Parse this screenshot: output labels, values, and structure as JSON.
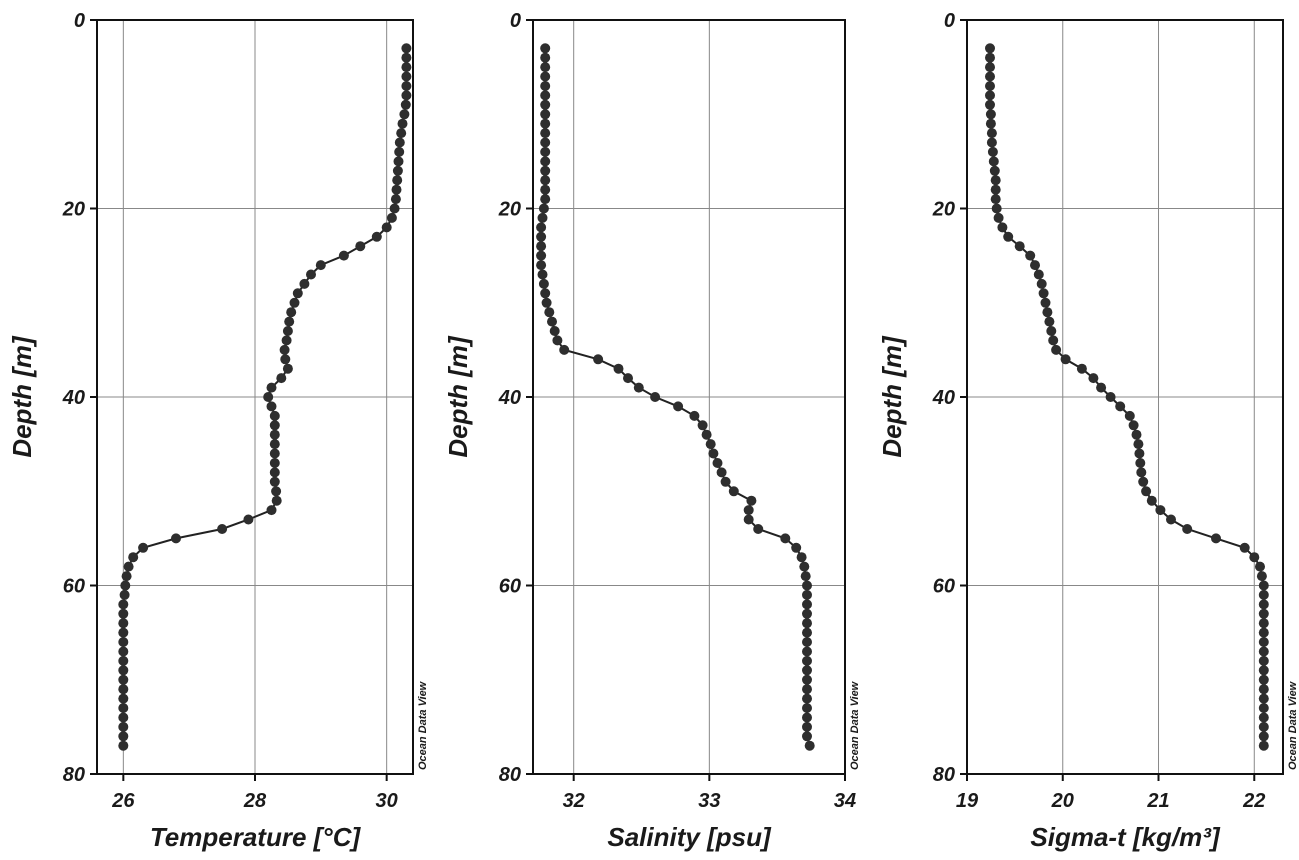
{
  "chart_data": [
    {
      "type": "line",
      "xlabel": "Temperature [°C]",
      "ylabel": "Depth [m]",
      "watermark": "Ocean Data View",
      "xlim": [
        25.6,
        30.4
      ],
      "ylim": [
        0,
        80
      ],
      "y_inverted": true,
      "x_ticks": [
        26,
        28,
        30
      ],
      "x_tick_labels": [
        "26",
        "28",
        "30"
      ],
      "y_ticks": [
        0,
        20,
        40,
        60,
        80
      ],
      "y_tick_labels": [
        "0",
        "20",
        "40",
        "60",
        "80"
      ],
      "grid": true,
      "series": [
        {
          "x": [
            30.3,
            30.3,
            30.3,
            30.3,
            30.3,
            30.3,
            30.29,
            30.27,
            30.24,
            30.22,
            30.2,
            30.19,
            30.18,
            30.17,
            30.16,
            30.15,
            30.14,
            30.12,
            30.08,
            30.0,
            29.85,
            29.6,
            29.35,
            29.0,
            28.85,
            28.75,
            28.65,
            28.6,
            28.55,
            28.52,
            28.5,
            28.48,
            28.45,
            28.46,
            28.5,
            28.4,
            28.25,
            28.2,
            28.25,
            28.3,
            28.3,
            28.3,
            28.3,
            28.3,
            28.3,
            28.3,
            28.3,
            28.32,
            28.33,
            28.25,
            27.9,
            27.5,
            26.8,
            26.3,
            26.15,
            26.08,
            26.05,
            26.03,
            26.02,
            26.0,
            26.0,
            26.0,
            26.0,
            26.0,
            26.0,
            26.0,
            26.0,
            26.0,
            26.0,
            26.0,
            26.0,
            26.0,
            26.0,
            26.0,
            26.0
          ],
          "y": [
            3,
            4,
            5,
            6,
            7,
            8,
            9,
            10,
            11,
            12,
            13,
            14,
            15,
            16,
            17,
            18,
            19,
            20,
            21,
            22,
            23,
            24,
            25,
            26,
            27,
            28,
            29,
            30,
            31,
            32,
            33,
            34,
            35,
            36,
            37,
            38,
            39,
            40,
            41,
            42,
            43,
            44,
            45,
            46,
            47,
            48,
            49,
            50,
            51,
            52,
            53,
            54,
            55,
            56,
            57,
            58,
            59,
            60,
            61,
            62,
            63,
            64,
            65,
            66,
            67,
            68,
            69,
            70,
            71,
            72,
            73,
            74,
            75,
            76,
            77
          ]
        }
      ]
    },
    {
      "type": "line",
      "xlabel": "Salinity [psu]",
      "ylabel": "Depth [m]",
      "watermark": "Ocean Data View",
      "xlim": [
        31.7,
        34.0
      ],
      "ylim": [
        0,
        80
      ],
      "y_inverted": true,
      "x_ticks": [
        32,
        33,
        34
      ],
      "x_tick_labels": [
        "32",
        "33",
        "34"
      ],
      "y_ticks": [
        0,
        20,
        40,
        60,
        80
      ],
      "y_tick_labels": [
        "0",
        "20",
        "40",
        "60",
        "80"
      ],
      "grid": true,
      "series": [
        {
          "x": [
            31.79,
            31.79,
            31.79,
            31.79,
            31.79,
            31.79,
            31.79,
            31.79,
            31.79,
            31.79,
            31.79,
            31.79,
            31.79,
            31.79,
            31.79,
            31.79,
            31.79,
            31.78,
            31.77,
            31.76,
            31.76,
            31.76,
            31.76,
            31.76,
            31.77,
            31.78,
            31.79,
            31.8,
            31.82,
            31.84,
            31.86,
            31.88,
            31.93,
            32.18,
            32.33,
            32.4,
            32.48,
            32.6,
            32.77,
            32.89,
            32.95,
            32.98,
            33.01,
            33.03,
            33.06,
            33.09,
            33.12,
            33.18,
            33.31,
            33.29,
            33.29,
            33.36,
            33.56,
            33.64,
            33.68,
            33.7,
            33.71,
            33.72,
            33.72,
            33.72,
            33.72,
            33.72,
            33.72,
            33.72,
            33.72,
            33.72,
            33.72,
            33.72,
            33.72,
            33.72,
            33.72,
            33.72,
            33.72,
            33.72,
            33.74
          ],
          "y": [
            3,
            4,
            5,
            6,
            7,
            8,
            9,
            10,
            11,
            12,
            13,
            14,
            15,
            16,
            17,
            18,
            19,
            20,
            21,
            22,
            23,
            24,
            25,
            26,
            27,
            28,
            29,
            30,
            31,
            32,
            33,
            34,
            35,
            36,
            37,
            38,
            39,
            40,
            41,
            42,
            43,
            44,
            45,
            46,
            47,
            48,
            49,
            50,
            51,
            52,
            53,
            54,
            55,
            56,
            57,
            58,
            59,
            60,
            61,
            62,
            63,
            64,
            65,
            66,
            67,
            68,
            69,
            70,
            71,
            72,
            73,
            74,
            75,
            76,
            77
          ]
        }
      ]
    },
    {
      "type": "line",
      "xlabel": "Sigma-t [kg/m³]",
      "ylabel": "Depth [m]",
      "watermark": "Ocean Data View",
      "xlim": [
        19.0,
        22.3
      ],
      "ylim": [
        0,
        80
      ],
      "y_inverted": true,
      "x_ticks": [
        19,
        20,
        21,
        22
      ],
      "x_tick_labels": [
        "19",
        "20",
        "21",
        "22"
      ],
      "y_ticks": [
        0,
        20,
        40,
        60,
        80
      ],
      "y_tick_labels": [
        "0",
        "20",
        "40",
        "60",
        "80"
      ],
      "grid": true,
      "series": [
        {
          "x": [
            19.24,
            19.24,
            19.24,
            19.24,
            19.24,
            19.24,
            19.24,
            19.25,
            19.25,
            19.26,
            19.26,
            19.27,
            19.28,
            19.29,
            19.3,
            19.3,
            19.3,
            19.31,
            19.33,
            19.37,
            19.43,
            19.55,
            19.66,
            19.71,
            19.75,
            19.78,
            19.8,
            19.82,
            19.84,
            19.86,
            19.88,
            19.9,
            19.93,
            20.03,
            20.2,
            20.32,
            20.4,
            20.5,
            20.6,
            20.7,
            20.74,
            20.77,
            20.79,
            20.8,
            20.81,
            20.82,
            20.84,
            20.87,
            20.93,
            21.02,
            21.13,
            21.3,
            21.6,
            21.9,
            22.0,
            22.06,
            22.08,
            22.1,
            22.1,
            22.1,
            22.1,
            22.1,
            22.1,
            22.1,
            22.1,
            22.1,
            22.1,
            22.1,
            22.1,
            22.1,
            22.1,
            22.1,
            22.1,
            22.1,
            22.1
          ],
          "y": [
            3,
            4,
            5,
            6,
            7,
            8,
            9,
            10,
            11,
            12,
            13,
            14,
            15,
            16,
            17,
            18,
            19,
            20,
            21,
            22,
            23,
            24,
            25,
            26,
            27,
            28,
            29,
            30,
            31,
            32,
            33,
            34,
            35,
            36,
            37,
            38,
            39,
            40,
            41,
            42,
            43,
            44,
            45,
            46,
            47,
            48,
            49,
            50,
            51,
            52,
            53,
            54,
            55,
            56,
            57,
            58,
            59,
            60,
            61,
            62,
            63,
            64,
            65,
            66,
            67,
            68,
            69,
            70,
            71,
            72,
            73,
            74,
            75,
            76,
            77
          ]
        }
      ]
    }
  ]
}
